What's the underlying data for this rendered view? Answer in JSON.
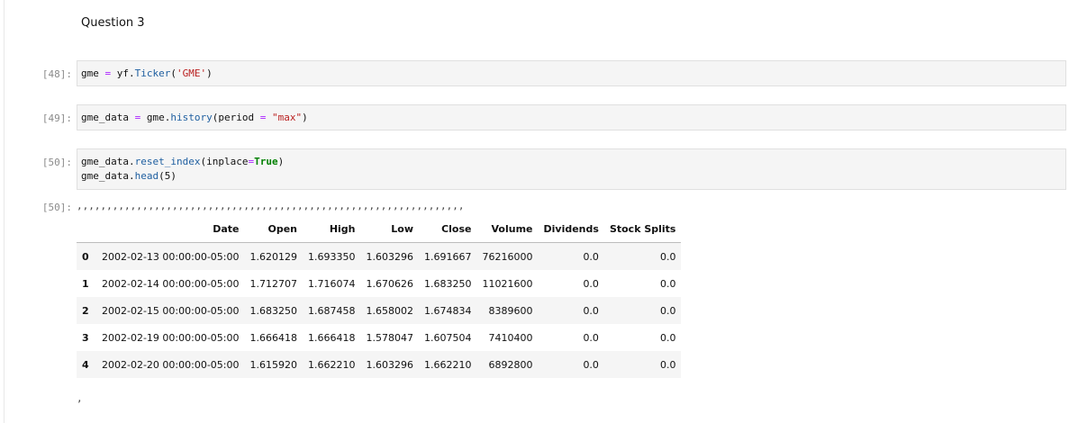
{
  "markdown": {
    "heading": "Question 3"
  },
  "cells": [
    {
      "prompt": "[48]:",
      "code_parts": [
        "gme ",
        "=",
        " yf.",
        "Ticker",
        "(",
        "'GME'",
        ")"
      ]
    },
    {
      "prompt": "[49]:",
      "code_parts": [
        "gme_data ",
        "=",
        " gme.",
        "history",
        "(period ",
        "=",
        " ",
        "\"max\"",
        ")"
      ]
    },
    {
      "prompt": "[50]:",
      "line1_parts": [
        "gme_data.",
        "reset_index",
        "(inplace",
        "=",
        "True",
        ")"
      ],
      "line2_parts": [
        "gme_data.",
        "head",
        "(5)"
      ]
    }
  ],
  "output": {
    "prompt": "[50]:",
    "stray_commas": ",,,,,,,,,,,,,,,,,,,,,,,,,,,,,,,,,,,,,,,,,,,,,,,,,,,,,,,,,,,,,,,,,",
    "trailing_comma": ","
  },
  "dataframe": {
    "columns": [
      "",
      "Date",
      "Open",
      "High",
      "Low",
      "Close",
      "Volume",
      "Dividends",
      "Stock Splits"
    ],
    "rows": [
      [
        "0",
        "2002-02-13 00:00:00-05:00",
        "1.620129",
        "1.693350",
        "1.603296",
        "1.691667",
        "76216000",
        "0.0",
        "0.0"
      ],
      [
        "1",
        "2002-02-14 00:00:00-05:00",
        "1.712707",
        "1.716074",
        "1.670626",
        "1.683250",
        "11021600",
        "0.0",
        "0.0"
      ],
      [
        "2",
        "2002-02-15 00:00:00-05:00",
        "1.683250",
        "1.687458",
        "1.658002",
        "1.674834",
        "8389600",
        "0.0",
        "0.0"
      ],
      [
        "3",
        "2002-02-19 00:00:00-05:00",
        "1.666418",
        "1.666418",
        "1.578047",
        "1.607504",
        "7410400",
        "0.0",
        "0.0"
      ],
      [
        "4",
        "2002-02-20 00:00:00-05:00",
        "1.615920",
        "1.662210",
        "1.603296",
        "1.662210",
        "6892800",
        "0.0",
        "0.0"
      ]
    ]
  }
}
